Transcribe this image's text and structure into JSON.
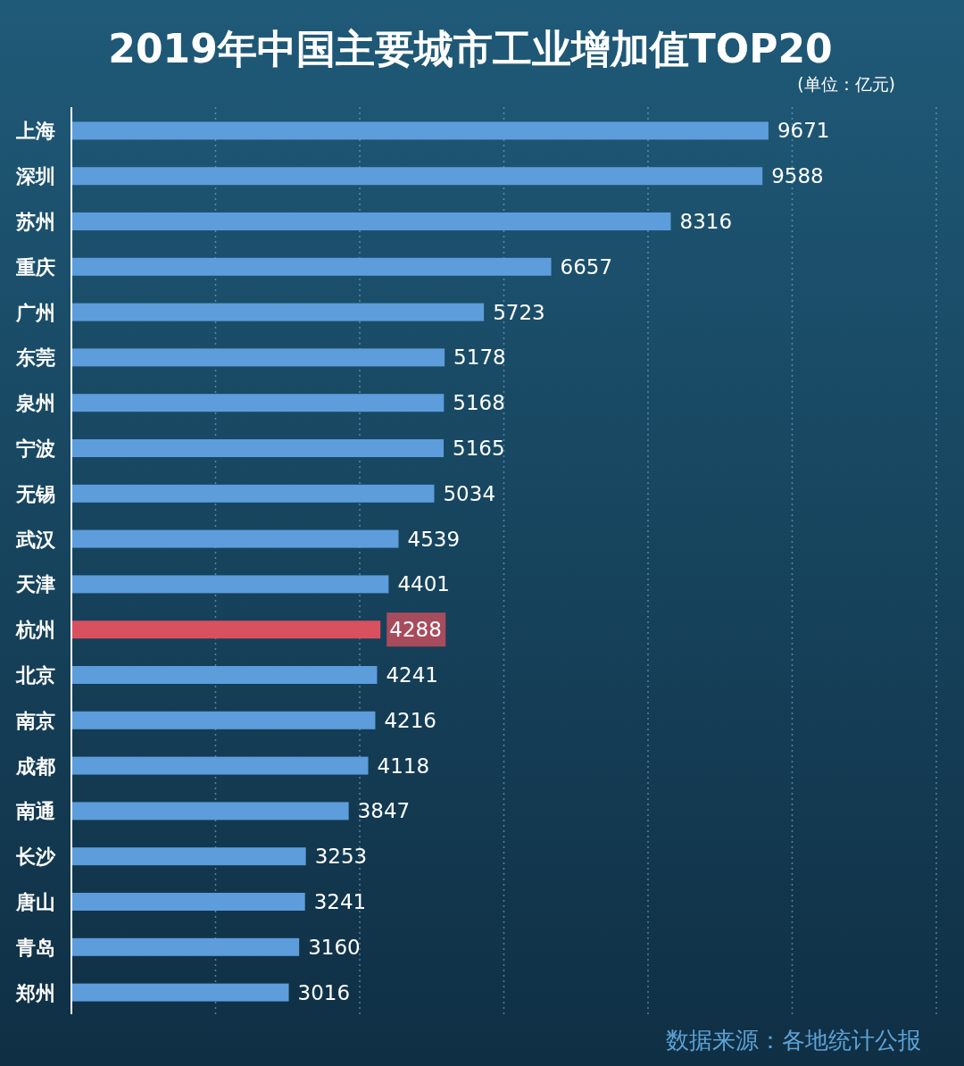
{
  "chart_data": {
    "type": "bar",
    "orientation": "horizontal",
    "title": "2019年中国主要城市工业增加值TOP20",
    "subtitle": "(单位：亿元)",
    "annotations": [
      "数据来源：各地统计公报"
    ],
    "categories": [
      "上海",
      "深圳",
      "苏州",
      "重庆",
      "广州",
      "东莞",
      "泉州",
      "宁波",
      "无锡",
      "武汉",
      "天津",
      "杭州",
      "北京",
      "南京",
      "成都",
      "南通",
      "长沙",
      "唐山",
      "青岛",
      "郑州"
    ],
    "values": [
      9671,
      9588,
      8316,
      6657,
      5723,
      5178,
      5168,
      5165,
      5034,
      4539,
      4401,
      4288,
      4241,
      4216,
      4118,
      3847,
      3253,
      3241,
      3160,
      3016
    ],
    "colors": [
      "#5d9ddc",
      "#5d9ddc",
      "#5d9ddc",
      "#5d9ddc",
      "#5d9ddc",
      "#5d9ddc",
      "#5d9ddc",
      "#5d9ddc",
      "#5d9ddc",
      "#5d9ddc",
      "#5d9ddc",
      "#d9505f",
      "#5d9ddc",
      "#5d9ddc",
      "#5d9ddc",
      "#5d9ddc",
      "#5d9ddc",
      "#5d9ddc",
      "#5d9ddc",
      "#5d9ddc"
    ],
    "data_labels": true,
    "xlim": [
      0,
      12000
    ],
    "xticks": [
      {
        "value": 0,
        "label": null
      },
      {
        "value": 2000,
        "label": null
      },
      {
        "value": 4000,
        "label": null
      },
      {
        "value": 6000,
        "label": null
      },
      {
        "value": 8000,
        "label": null
      },
      {
        "value": 10000,
        "label": null
      },
      {
        "value": 12000,
        "label": null
      }
    ],
    "grid": "x",
    "tick_labels": "y"
  }
}
